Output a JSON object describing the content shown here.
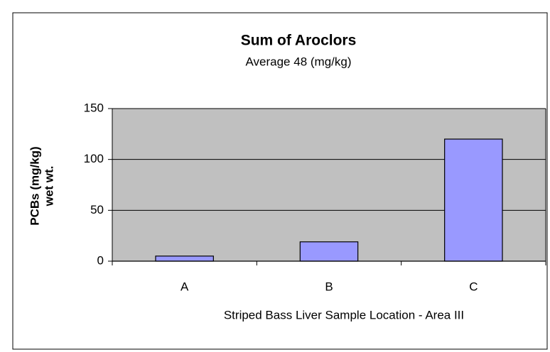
{
  "chart_data": {
    "type": "bar",
    "title": "Sum of Aroclors",
    "subtitle": "Average 48 (mg/kg)",
    "y_label": [
      "PCBs (mg/kg)",
      "wet wt."
    ],
    "x_label": "Striped Bass Liver Sample Location - Area III",
    "categories": [
      "A",
      "B",
      "C"
    ],
    "values": [
      5,
      19,
      120
    ],
    "color": "#9999ff",
    "ylim": [
      0,
      150
    ],
    "yticks": [
      0,
      50,
      100,
      150
    ],
    "grid": true
  }
}
